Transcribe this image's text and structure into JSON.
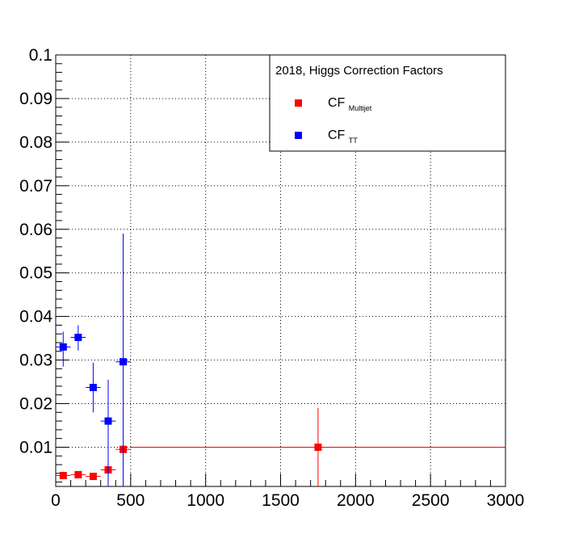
{
  "chart_data": {
    "type": "scatter",
    "title": "",
    "xlabel": "",
    "ylabel": "",
    "xlim": [
      0,
      3000
    ],
    "ylim": [
      0.001,
      0.1
    ],
    "grid": true,
    "legend_placement": "top-right",
    "x_tick_labels": [
      "0",
      "500",
      "1000",
      "1500",
      "2000",
      "2500",
      "3000"
    ],
    "y_tick_labels": [
      "0.01",
      "0.02",
      "0.03",
      "0.04",
      "0.05",
      "0.06",
      "0.07",
      "0.08",
      "0.09",
      "0.1"
    ],
    "legend": {
      "title": "2018, Higgs Correction Factors",
      "entries": [
        {
          "main": "CF",
          "sub": "Multijet",
          "color": "#ff0000"
        },
        {
          "main": "CF",
          "sub": "TT",
          "color": "#0000ff"
        }
      ]
    },
    "series": [
      {
        "color": "#ff0000",
        "points": [
          {
            "x": 50,
            "y": 0.0035,
            "xerr": [
              50,
              50
            ],
            "yerr": [
              0.0003,
              0.0003
            ]
          },
          {
            "x": 150,
            "y": 0.0037,
            "xerr": [
              50,
              50
            ],
            "yerr": [
              0.0003,
              0.0003
            ]
          },
          {
            "x": 250,
            "y": 0.0033,
            "xerr": [
              50,
              50
            ],
            "yerr": [
              0.0005,
              0.0005
            ]
          },
          {
            "x": 350,
            "y": 0.0048,
            "xerr": [
              50,
              50
            ],
            "yerr": [
              0.0028,
              0.0012
            ]
          },
          {
            "x": 450,
            "y": 0.0095,
            "xerr": [
              50,
              50
            ],
            "yerr": [
              0.0003,
              0.0003
            ]
          },
          {
            "x": 1750,
            "y": 0.01,
            "xerr": [
              1250,
              1250
            ],
            "yerr": [
              0.009,
              0.009
            ]
          }
        ]
      },
      {
        "color": "#0000ff",
        "points": [
          {
            "x": 50,
            "y": 0.033,
            "xerr": [
              50,
              50
            ],
            "yerr": [
              0.0045,
              0.0035
            ]
          },
          {
            "x": 150,
            "y": 0.0352,
            "xerr": [
              50,
              50
            ],
            "yerr": [
              0.003,
              0.0028
            ]
          },
          {
            "x": 250,
            "y": 0.0237,
            "xerr": [
              50,
              50
            ],
            "yerr": [
              0.0057,
              0.0057
            ]
          },
          {
            "x": 350,
            "y": 0.016,
            "xerr": [
              50,
              50
            ],
            "yerr": [
              0.015,
              0.0095
            ]
          },
          {
            "x": 450,
            "y": 0.0296,
            "xerr": [
              50,
              50
            ],
            "yerr": [
              0.0286,
              0.0294
            ]
          }
        ]
      }
    ]
  }
}
